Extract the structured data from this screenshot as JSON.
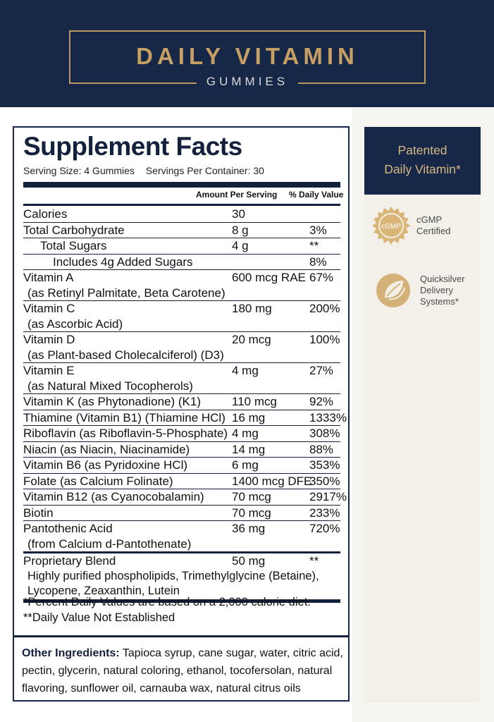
{
  "header": {
    "title": "DAILY VITAMIN",
    "subtitle": "GUMMIES"
  },
  "facts": {
    "title": "Supplement Facts",
    "serving_size": "Serving Size: 4 Gummies",
    "servings_per_container": "Servings Per Container: 30",
    "col_amount": "Amount Per Serving",
    "col_dv": "% Daily Value",
    "rows": {
      "calories": {
        "name": "Calories",
        "amount": "30",
        "dv": ""
      },
      "carb": {
        "name": "Total Carbohydrate",
        "amount": "8 g",
        "dv": "3%"
      },
      "sugars": {
        "name": "Total Sugars",
        "amount": "4 g",
        "dv": "**"
      },
      "added": {
        "name": "Includes 4g Added Sugars",
        "amount": "",
        "dv": "8%"
      },
      "vita": {
        "name": "Vitamin A",
        "sub": "(as Retinyl Palmitate, Beta Carotene)",
        "amount": "600 mcg RAE",
        "dv": "67%"
      },
      "vitc": {
        "name": "Vitamin C",
        "sub": "(as Ascorbic Acid)",
        "amount": "180 mg",
        "dv": "200%"
      },
      "vitd": {
        "name": "Vitamin D",
        "sub": "(as Plant-based Cholecalciferol) (D3)",
        "amount": "20 mcg",
        "dv": "100%"
      },
      "vite": {
        "name": "Vitamin E",
        "sub": "(as Natural Mixed Tocopherols)",
        "amount": "4 mg",
        "dv": "27%"
      },
      "vitk": {
        "name": "Vitamin K (as Phytonadione) (K1)",
        "amount": "110 mcg",
        "dv": "92%"
      },
      "thiamine": {
        "name": "Thiamine (Vitamin B1) (Thiamine HCl)",
        "amount": "16 mg",
        "dv": "1333%"
      },
      "riboflavin": {
        "name": "Riboflavin (as Riboflavin-5-Phosphate)",
        "amount": "4 mg",
        "dv": "308%"
      },
      "niacin": {
        "name": "Niacin (as Niacin, Niacinamide)",
        "amount": "14 mg",
        "dv": "88%"
      },
      "b6": {
        "name": "Vitamin B6 (as Pyridoxine HCl)",
        "amount": "6 mg",
        "dv": "353%"
      },
      "folate": {
        "name": "Folate (as Calcium Folinate)",
        "amount": "1400 mcg DFE",
        "dv": "350%"
      },
      "b12": {
        "name": "Vitamin B12 (as Cyanocobalamin)",
        "amount": "70 mcg",
        "dv": "2917%"
      },
      "biotin": {
        "name": "Biotin",
        "amount": "70 mcg",
        "dv": "233%"
      },
      "panto": {
        "name": "Pantothenic Acid",
        "sub": "(from Calcium d-Pantothenate)",
        "amount": "36 mg",
        "dv": "720%"
      },
      "blend": {
        "name": "Proprietary Blend",
        "amount": "50 mg",
        "dv": "**",
        "detail1": "Highly purified phospholipids, Trimethylglycine (Betaine),",
        "detail2": "Lycopene, Zeaxanthin, Lutein"
      }
    },
    "note1": "*Percent Daily Values are based on a 2,000 calorie diet.",
    "note2": "**Daily Value Not Established",
    "other_label": "Other Ingredients:",
    "other_line1": "Tapioca syrup, cane sugar, water, citric acid,",
    "other_line2": "pectin, glycerin, natural coloring, ethanol, tocofersolan, natural",
    "other_line3": "flavoring, sunflower oil, carnauba wax, natural citrus oils"
  },
  "sidebar": {
    "card_line1": "Patented",
    "card_line2": "Daily Vitamin*",
    "badge1_icon_text": "cGMP",
    "badge1_line1": "cGMP",
    "badge1_line2": "Certified",
    "badge2_line1": "Quicksilver",
    "badge2_line2": "Delivery",
    "badge2_line3": "Systems*"
  },
  "colors": {
    "navy": "#162747",
    "gold": "#c79f63",
    "cream": "#f3f0e9"
  }
}
